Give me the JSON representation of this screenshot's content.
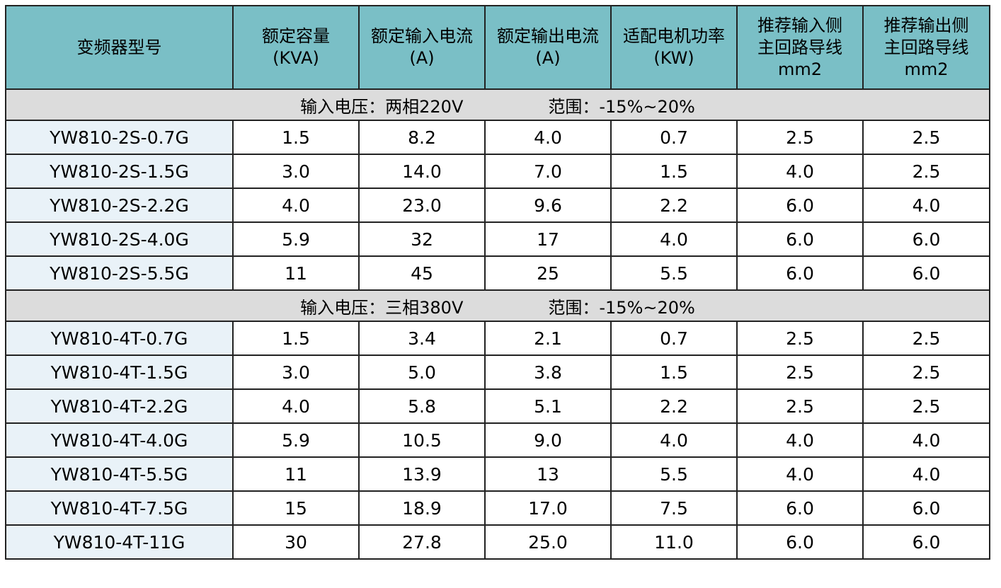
{
  "header": [
    [
      "变频器型号"
    ],
    [
      "额定容量",
      "(KVA)"
    ],
    [
      "额定输入电流",
      "(A)"
    ],
    [
      "额定输出电流",
      "(A)"
    ],
    [
      "适配电机功率",
      "(KW)"
    ],
    [
      "推荐输入侧",
      "主回路导线",
      "mm2"
    ],
    [
      "推荐输出侧",
      "主回路导线",
      "mm2"
    ]
  ],
  "sections": [
    {
      "voltage": "输入电压：两相220V",
      "range": "范围：-15%~20%",
      "rows": [
        [
          "YW810-2S-0.7G",
          "1.5",
          "8.2",
          "4.0",
          "0.7",
          "2.5",
          "2.5"
        ],
        [
          "YW810-2S-1.5G",
          "3.0",
          "14.0",
          "7.0",
          "1.5",
          "4.0",
          "2.5"
        ],
        [
          "YW810-2S-2.2G",
          "4.0",
          "23.0",
          "9.6",
          "2.2",
          "6.0",
          "4.0"
        ],
        [
          "YW810-2S-4.0G",
          "5.9",
          "32",
          "17",
          "4.0",
          "6.0",
          "6.0"
        ],
        [
          "YW810-2S-5.5G",
          "11",
          "45",
          "25",
          "5.5",
          "6.0",
          "6.0"
        ]
      ]
    },
    {
      "voltage": "输入电压：三相380V",
      "range": "范围：-15%~20%",
      "rows": [
        [
          "YW810-4T-0.7G",
          "1.5",
          "3.4",
          "2.1",
          "0.7",
          "2.5",
          "2.5"
        ],
        [
          "YW810-4T-1.5G",
          "3.0",
          "5.0",
          "3.8",
          "1.5",
          "2.5",
          "2.5"
        ],
        [
          "YW810-4T-2.2G",
          "4.0",
          "5.8",
          "5.1",
          "2.2",
          "2.5",
          "2.5"
        ],
        [
          "YW810-4T-4.0G",
          "5.9",
          "10.5",
          "9.0",
          "4.0",
          "4.0",
          "4.0"
        ],
        [
          "YW810-4T-5.5G",
          "11",
          "13.9",
          "13",
          "5.5",
          "4.0",
          "4.0"
        ],
        [
          "YW810-4T-7.5G",
          "15",
          "18.9",
          "17.0",
          "7.5",
          "6.0",
          "6.0"
        ],
        [
          "YW810-4T-11G",
          "30",
          "27.8",
          "25.0",
          "11.0",
          "6.0",
          "6.0"
        ]
      ]
    }
  ]
}
